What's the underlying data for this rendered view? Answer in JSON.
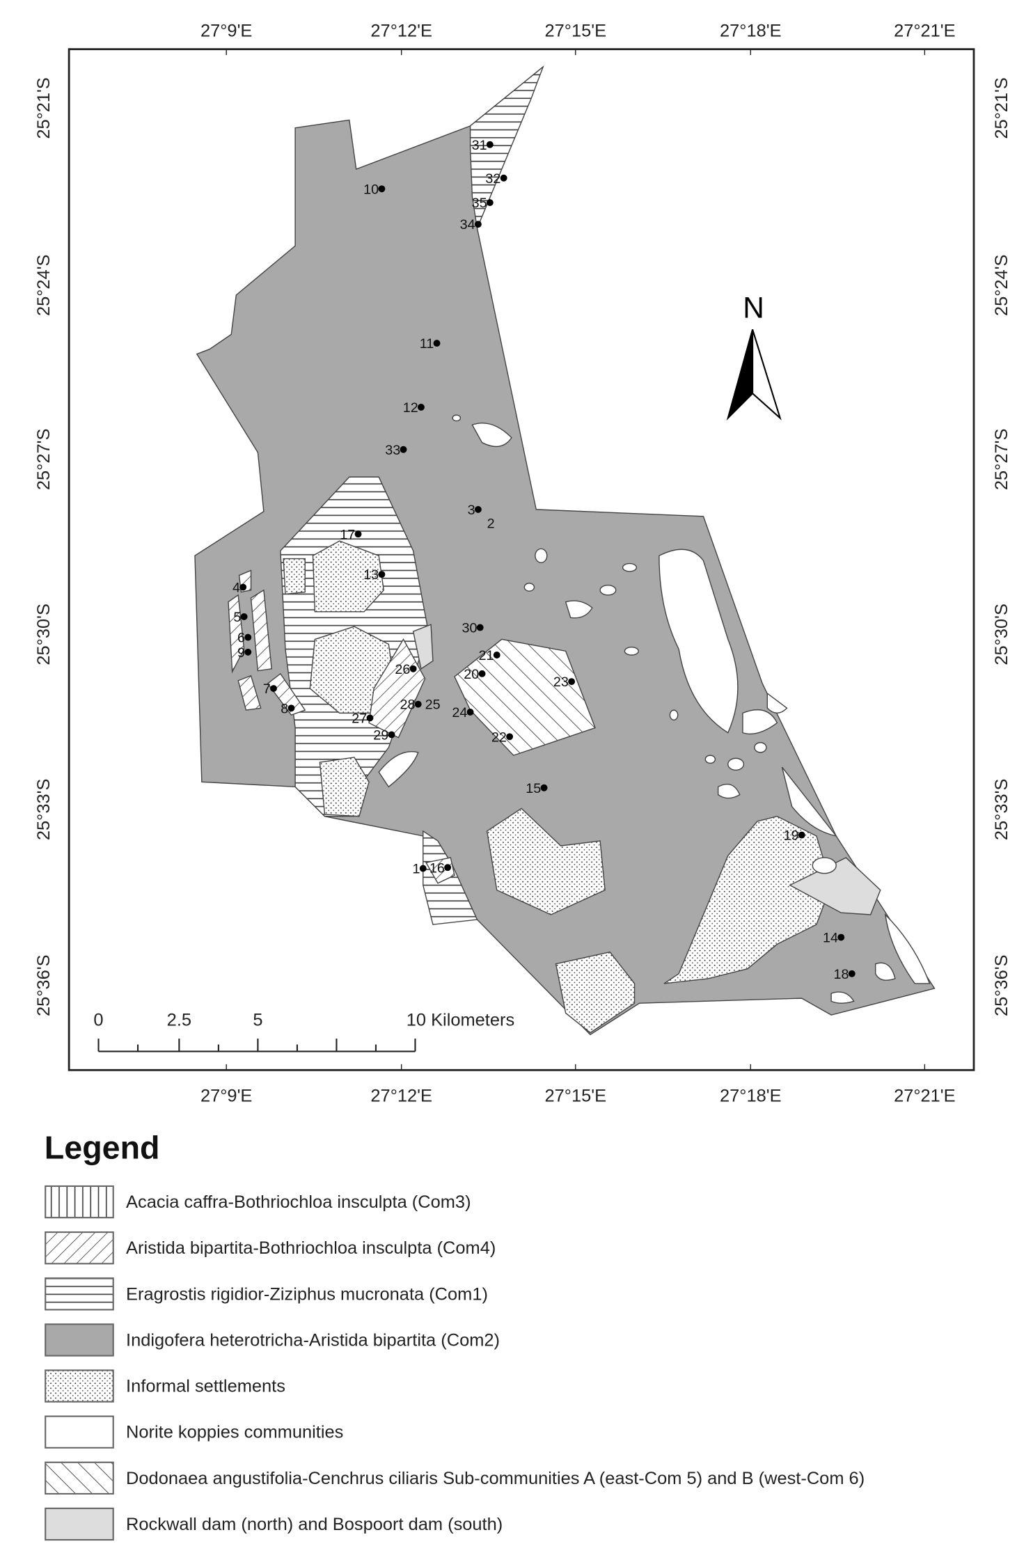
{
  "axis_labels": {
    "top": [
      "27°9'E",
      "27°12'E",
      "27°15'E",
      "27°18'E",
      "27°21'E"
    ],
    "bottom": [
      "27°9'E",
      "27°12'E",
      "27°15'E",
      "27°18'E",
      "27°21'E"
    ],
    "left": [
      "25°21'S",
      "25°24'S",
      "25°27'S",
      "25°30'S",
      "25°33'S",
      "25°36'S"
    ],
    "right": [
      "25°21'S",
      "25°24'S",
      "25°27'S",
      "25°30'S",
      "25°33'S",
      "25°36'S"
    ]
  },
  "north": "N",
  "scale_bar": [
    "0",
    "2.5",
    "5",
    "10 Kilometers"
  ],
  "sites": [
    "31",
    "10",
    "32",
    "35",
    "34",
    "11",
    "12",
    "33",
    "3",
    "2",
    "17",
    "13",
    "4",
    "5",
    "6",
    "9",
    "30",
    "21",
    "20",
    "23",
    "26",
    "7",
    "28",
    "25",
    "8",
    "24",
    "27",
    "29",
    "22",
    "15",
    "19",
    "1",
    "16",
    "14",
    "18"
  ],
  "legend": {
    "title": "Legend",
    "items": [
      "Acacia caffra-Bothriochloa insculpta (Com3)",
      "Aristida bipartita-Bothriochloa insculpta (Com4)",
      "Eragrostis rigidior-Ziziphus mucronata (Com1)",
      "Indigofera heterotricha-Aristida bipartita (Com2)",
      "Informal settlements",
      "Norite koppies communities",
      "Dodonaea angustifolia-Cenchrus ciliaris Sub-communities A (east-Com 5) and B (west-Com 6)",
      "Rockwall dam (north) and Bospoort dam (south)"
    ]
  }
}
